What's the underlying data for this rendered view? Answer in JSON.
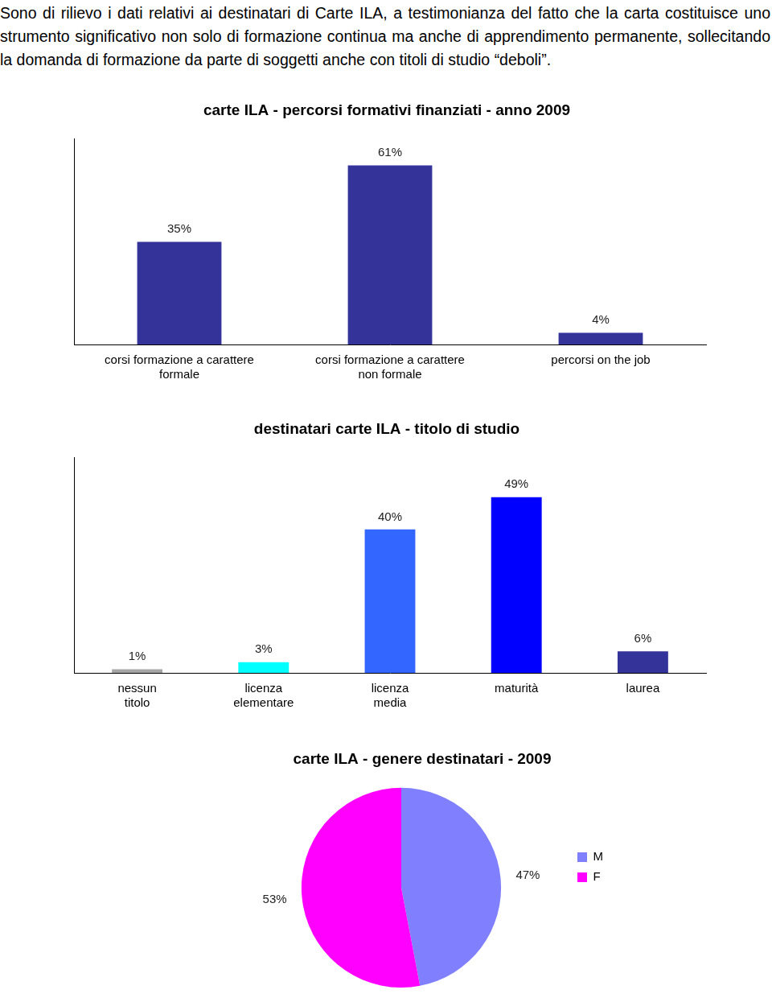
{
  "intro": "Sono di rilievo i dati relativi ai destinatari di Carte ILA, a testimonianza del fatto che la carta costituisce uno strumento significativo non solo di formazione continua ma anche di apprendimento permanente, sollecitando la domanda di formazione da parte di soggetti anche con titoli di studio “deboli”.",
  "chart_data": [
    {
      "type": "bar",
      "title": "carte ILA - percorsi formativi finanziati - anno 2009",
      "categories": [
        "corsi formazione a carattere formale",
        "corsi formazione a carattere non formale",
        "percorsi on the job"
      ],
      "values": [
        35,
        61,
        4
      ],
      "value_labels": [
        "35%",
        "61%",
        "4%"
      ],
      "color": "#333399",
      "ylim": [
        0,
        70
      ],
      "grid": false,
      "data_labels": true,
      "tick_labels": "x"
    },
    {
      "type": "bar",
      "title": "destinatari carte ILA - titolo di studio",
      "categories": [
        "nessun titolo",
        "licenza elementare",
        "licenza media",
        "maturità",
        "laurea"
      ],
      "values": [
        1,
        3,
        40,
        49,
        6
      ],
      "value_labels": [
        "1%",
        "3%",
        "40%",
        "49%",
        "6%"
      ],
      "colors": [
        "#a6a6a6",
        "#00ffff",
        "#3366ff",
        "#0000ff",
        "#333399"
      ],
      "ylim": [
        0,
        60
      ],
      "grid": false,
      "data_labels": true,
      "tick_labels": "x"
    },
    {
      "type": "pie",
      "title": "carte ILA - genere destinatari - 2009",
      "categories": [
        "M",
        "F"
      ],
      "values": [
        47,
        53
      ],
      "value_labels": [
        "47%",
        "53%"
      ],
      "colors": [
        "#8080ff",
        "#ff00ff"
      ],
      "legend": "right",
      "data_labels": true
    }
  ]
}
